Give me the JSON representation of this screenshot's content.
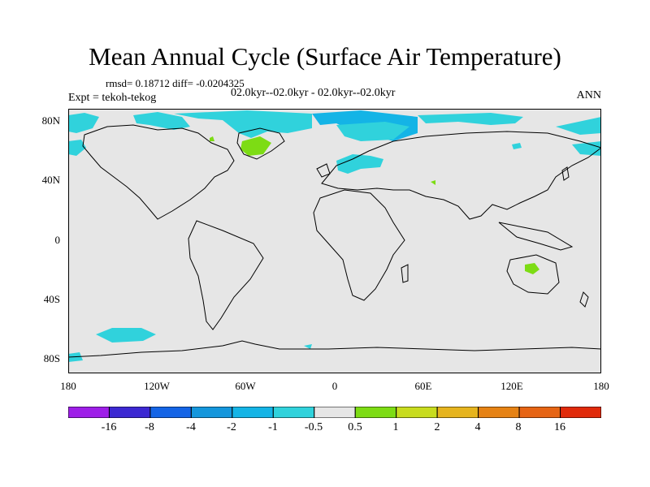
{
  "title": "Mean Annual Cycle (Surface Air Temperature)",
  "stats_line": "rmsd= 0.18712 diff= -0.0204325",
  "subtitle": "02.0kyr--02.0kyr - 02.0kyr--02.0kyr",
  "experiment_label": "Expt = tekoh-tekog",
  "season": "ANN",
  "map": {
    "lat_labels": [
      "80N",
      "40N",
      "0",
      "40S",
      "80S"
    ],
    "lon_labels": [
      "180",
      "120W",
      "60W",
      "0",
      "60E",
      "120E",
      "180"
    ],
    "background_color": "#e6e6e6"
  },
  "legend": {
    "colors": [
      "#9e1ee8",
      "#3c28d2",
      "#1464e6",
      "#1496dc",
      "#14b4e6",
      "#30d2dc",
      "#e6e6e6",
      "#7ddc14",
      "#c8dc1e",
      "#e6b41e",
      "#e68214",
      "#e66414",
      "#e02a0a"
    ],
    "labels": [
      "-16",
      "-8",
      "-4",
      "-2",
      "-1",
      "-0.5",
      "0.5",
      "1",
      "2",
      "4",
      "8",
      "16"
    ]
  },
  "colors": {
    "cyan": "#30d2dc",
    "blue": "#14b4e6",
    "green": "#7ddc14"
  }
}
